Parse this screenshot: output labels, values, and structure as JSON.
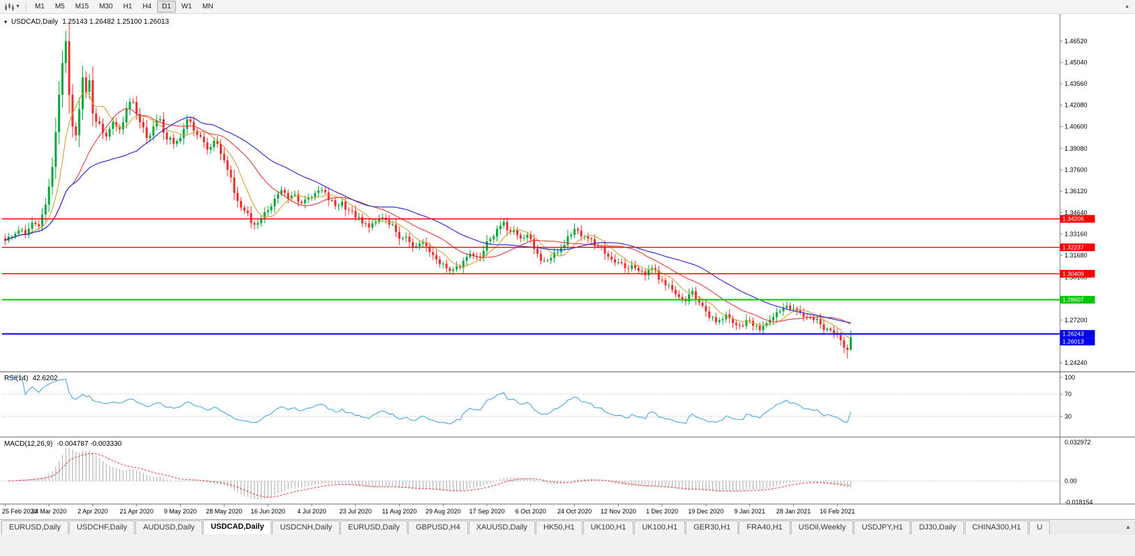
{
  "toolbar": {
    "timeframes": [
      "M1",
      "M5",
      "M15",
      "M30",
      "H1",
      "H4",
      "D1",
      "W1",
      "MN"
    ],
    "active_timeframe": "D1"
  },
  "chart_header": {
    "symbol": "USDCAD,Daily",
    "ohlc_text": "1.25143 1.26482 1.25100 1.26013"
  },
  "rsi_panel": {
    "title": "RSI(14)",
    "value": "42.6202",
    "scale_labels": [
      "100",
      "70",
      "30"
    ],
    "levels": [
      70,
      30
    ],
    "line_color": "#4DA6DC"
  },
  "macd_panel": {
    "title": "MACD(12,26,9)",
    "values_text": "-0.004787 -0.003330",
    "scale_labels": [
      "0.032972",
      "0.00",
      "-0.018154"
    ],
    "scale_max": 0.032972,
    "scale_min": -0.018154,
    "histogram_color": "#a9a9a9",
    "signal_color": "#e04040"
  },
  "chart_data": {
    "type": "candlestick",
    "symbol": "USDCAD",
    "timeframe": "Daily",
    "bars": 252,
    "bars_per_label": 13,
    "price_axis_labels": [
      "1.46520",
      "1.45040",
      "1.43560",
      "1.42080",
      "1.40600",
      "1.39080",
      "1.37600",
      "1.36120",
      "1.34640",
      "1.33160",
      "1.31680",
      "1.30160",
      "1.28680",
      "1.27200",
      "1.25720",
      "1.24240"
    ],
    "date_axis_labels": [
      "25 Feb 2020",
      "14 Mar 2020",
      "2 Apr 2020",
      "21 Apr 2020",
      "9 May 2020",
      "28 May 2020",
      "16 Jun 2020",
      "4 Jul 2020",
      "23 Jul 2020",
      "11 Aug 2020",
      "29 Aug 2020",
      "17 Sep 2020",
      "6 Oct 2020",
      "24 Oct 2020",
      "12 Nov 2020",
      "1 Dec 2020",
      "19 Dec 2020",
      "9 Jan 2021",
      "28 Jan 2021",
      "16 Feb 2021"
    ],
    "price_range": [
      1.2381,
      1.482
    ],
    "last_bar": {
      "open": 1.25143,
      "high": 1.26482,
      "low": 1.251,
      "close": 1.26013
    },
    "close_anchors": [
      [
        0,
        1.327
      ],
      [
        2,
        1.33
      ],
      [
        4,
        1.334
      ],
      [
        6,
        1.331
      ],
      [
        8,
        1.3395
      ],
      [
        10,
        1.337
      ],
      [
        12,
        1.352
      ],
      [
        14,
        1.378
      ],
      [
        16,
        1.428
      ],
      [
        17,
        1.45
      ],
      [
        18,
        1.465
      ],
      [
        19,
        1.428
      ],
      [
        20,
        1.406
      ],
      [
        21,
        1.4
      ],
      [
        22,
        1.418
      ],
      [
        23,
        1.44
      ],
      [
        24,
        1.43
      ],
      [
        25,
        1.438
      ],
      [
        26,
        1.415
      ],
      [
        28,
        1.408
      ],
      [
        30,
        1.399
      ],
      [
        32,
        1.409
      ],
      [
        34,
        1.404
      ],
      [
        36,
        1.418
      ],
      [
        38,
        1.423
      ],
      [
        40,
        1.409
      ],
      [
        42,
        1.398
      ],
      [
        44,
        1.406
      ],
      [
        46,
        1.411
      ],
      [
        48,
        1.397
      ],
      [
        50,
        1.394
      ],
      [
        52,
        1.398
      ],
      [
        54,
        1.411
      ],
      [
        56,
        1.403
      ],
      [
        58,
        1.399
      ],
      [
        60,
        1.39
      ],
      [
        62,
        1.396
      ],
      [
        64,
        1.387
      ],
      [
        66,
        1.376
      ],
      [
        68,
        1.36
      ],
      [
        70,
        1.35
      ],
      [
        72,
        1.346
      ],
      [
        74,
        1.338
      ],
      [
        76,
        1.342
      ],
      [
        78,
        1.348
      ],
      [
        80,
        1.356
      ],
      [
        82,
        1.362
      ],
      [
        84,
        1.356
      ],
      [
        86,
        1.359
      ],
      [
        88,
        1.353
      ],
      [
        90,
        1.357
      ],
      [
        92,
        1.36
      ],
      [
        94,
        1.362
      ],
      [
        96,
        1.355
      ],
      [
        98,
        1.351
      ],
      [
        100,
        1.354
      ],
      [
        102,
        1.348
      ],
      [
        104,
        1.343
      ],
      [
        106,
        1.339
      ],
      [
        108,
        1.336
      ],
      [
        110,
        1.34
      ],
      [
        112,
        1.343
      ],
      [
        114,
        1.338
      ],
      [
        116,
        1.333
      ],
      [
        118,
        1.329
      ],
      [
        120,
        1.326
      ],
      [
        122,
        1.323
      ],
      [
        124,
        1.326
      ],
      [
        126,
        1.319
      ],
      [
        128,
        1.314
      ],
      [
        130,
        1.311
      ],
      [
        132,
        1.306
      ],
      [
        134,
        1.309
      ],
      [
        136,
        1.313
      ],
      [
        138,
        1.318
      ],
      [
        140,
        1.316
      ],
      [
        142,
        1.32
      ],
      [
        144,
        1.328
      ],
      [
        146,
        1.335
      ],
      [
        148,
        1.34
      ],
      [
        150,
        1.333
      ],
      [
        152,
        1.331
      ],
      [
        154,
        1.329
      ],
      [
        156,
        1.328
      ],
      [
        158,
        1.318
      ],
      [
        160,
        1.313
      ],
      [
        162,
        1.315
      ],
      [
        164,
        1.319
      ],
      [
        166,
        1.324
      ],
      [
        168,
        1.331
      ],
      [
        170,
        1.334
      ],
      [
        172,
        1.33
      ],
      [
        174,
        1.328
      ],
      [
        176,
        1.323
      ],
      [
        178,
        1.318
      ],
      [
        180,
        1.314
      ],
      [
        182,
        1.312
      ],
      [
        184,
        1.308
      ],
      [
        186,
        1.31
      ],
      [
        188,
        1.306
      ],
      [
        190,
        1.303
      ],
      [
        192,
        1.308
      ],
      [
        194,
        1.3
      ],
      [
        196,
        1.296
      ],
      [
        198,
        1.293
      ],
      [
        200,
        1.288
      ],
      [
        202,
        1.285
      ],
      [
        204,
        1.292
      ],
      [
        206,
        1.284
      ],
      [
        208,
        1.278
      ],
      [
        210,
        1.274
      ],
      [
        212,
        1.272
      ],
      [
        214,
        1.276
      ],
      [
        216,
        1.27
      ],
      [
        218,
        1.268
      ],
      [
        220,
        1.272
      ],
      [
        222,
        1.268
      ],
      [
        224,
        1.265
      ],
      [
        226,
        1.27
      ],
      [
        228,
        1.274
      ],
      [
        230,
        1.278
      ],
      [
        232,
        1.282
      ],
      [
        234,
        1.28
      ],
      [
        236,
        1.277
      ],
      [
        238,
        1.274
      ],
      [
        240,
        1.272
      ],
      [
        242,
        1.269
      ],
      [
        244,
        1.266
      ],
      [
        246,
        1.263
      ],
      [
        248,
        1.258
      ],
      [
        250,
        1.25143
      ],
      [
        251,
        1.26013
      ]
    ],
    "horizontal_lines": [
      {
        "price": 1.34206,
        "label": "1.34206",
        "color": "#ff0000",
        "width": 1.4
      },
      {
        "price": 1.32237,
        "label": "1.32237",
        "color": "#ff0000",
        "width": 1.4
      },
      {
        "price": 1.30409,
        "label": "1.30409",
        "color": "#ff0000",
        "width": 1.4
      },
      {
        "price": 1.28607,
        "label": "1.28607",
        "color": "#00c800",
        "width": 2
      },
      {
        "price": 1.26243,
        "label": "1.26243",
        "color": "#0000ee",
        "width": 2
      }
    ],
    "current_price": {
      "price": 1.26013,
      "label": "1.26013",
      "color": "#0000ee"
    },
    "moving_averages": [
      {
        "period": 8,
        "color": "#cda434"
      },
      {
        "period": 21,
        "color": "#e23b3b"
      },
      {
        "period": 40,
        "color": "#2222cc"
      }
    ],
    "candle_up_color": "#00a83a",
    "candle_down_color": "#f22b2b"
  },
  "tabs": {
    "items": [
      {
        "label": "EURUSD,Daily",
        "active": false
      },
      {
        "label": "USDCHF,Daily",
        "active": false
      },
      {
        "label": "AUDUSD,Daily",
        "active": false
      },
      {
        "label": "USDCAD,Daily",
        "active": true
      },
      {
        "label": "USDCNH,Daily",
        "active": false
      },
      {
        "label": "EURUSD,Daily",
        "active": false
      },
      {
        "label": "GBPUSD,H4",
        "active": false
      },
      {
        "label": "XAUUSD,Daily",
        "active": false
      },
      {
        "label": "HK50,H1",
        "active": false
      },
      {
        "label": "UK100,H1",
        "active": false
      },
      {
        "label": "UK100,H1",
        "active": false
      },
      {
        "label": "GER30,H1",
        "active": false
      },
      {
        "label": "FRA40,H1",
        "active": false
      },
      {
        "label": "USOil,Weekly",
        "active": false
      },
      {
        "label": "USDJPY,H1",
        "active": false
      },
      {
        "label": "DJ30,Daily",
        "active": false
      },
      {
        "label": "CHINA300,H1",
        "active": false
      },
      {
        "label": "U",
        "active": false
      }
    ]
  }
}
